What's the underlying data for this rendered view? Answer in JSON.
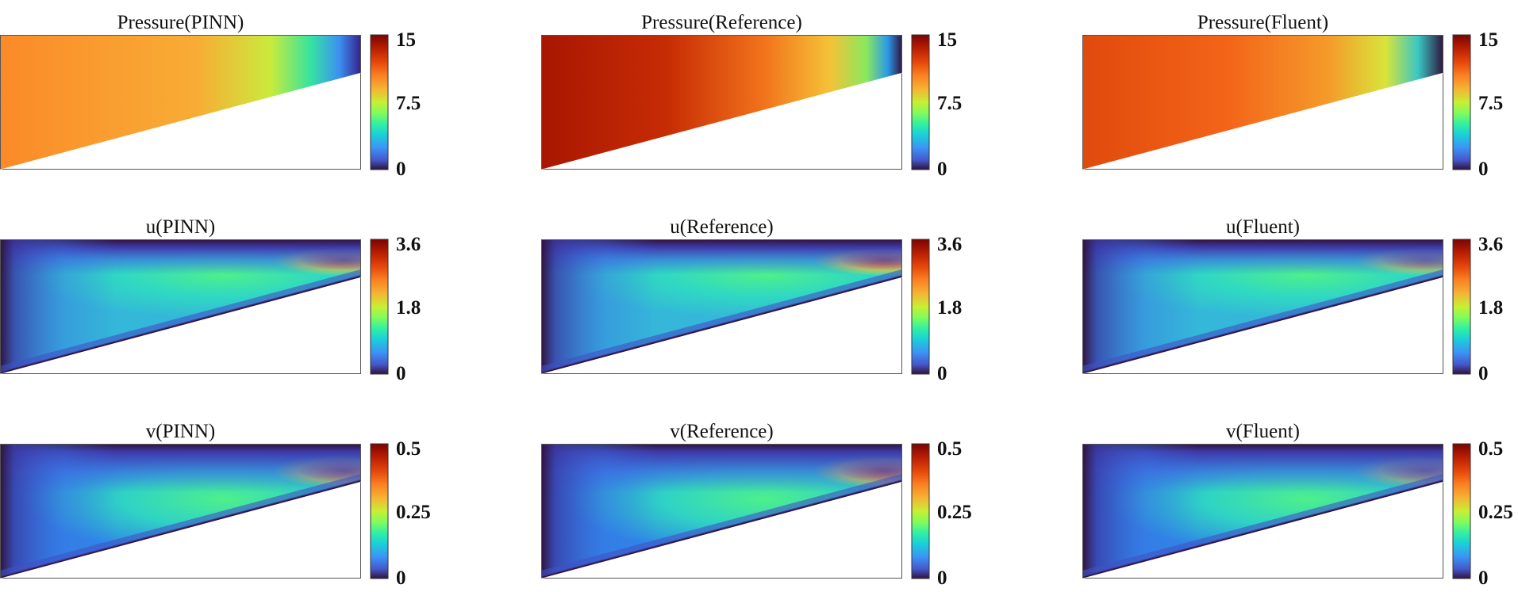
{
  "chart_data": [
    {
      "type": "heatmap",
      "title": "Pressure(PINN)",
      "field": "pressure",
      "source": "pinn",
      "clim": [
        0,
        15
      ],
      "colorbar_ticks": [
        "15",
        "7.5",
        "0"
      ],
      "colormap": "turbo"
    },
    {
      "type": "heatmap",
      "title": "Pressure(Reference)",
      "field": "pressure",
      "source": "reference",
      "clim": [
        0,
        15
      ],
      "colorbar_ticks": [
        "15",
        "7.5",
        "0"
      ],
      "colormap": "turbo"
    },
    {
      "type": "heatmap",
      "title": "Pressure(Fluent)",
      "field": "pressure",
      "source": "fluent",
      "clim": [
        0,
        15
      ],
      "colorbar_ticks": [
        "15",
        "7.5",
        "0"
      ],
      "colormap": "turbo"
    },
    {
      "type": "heatmap",
      "title": "u(PINN)",
      "field": "u",
      "source": "pinn",
      "clim": [
        0,
        3.6
      ],
      "colorbar_ticks": [
        "3.6",
        "1.8",
        "0"
      ],
      "colormap": "turbo"
    },
    {
      "type": "heatmap",
      "title": "u(Reference)",
      "field": "u",
      "source": "reference",
      "clim": [
        0,
        3.6
      ],
      "colorbar_ticks": [
        "3.6",
        "1.8",
        "0"
      ],
      "colormap": "turbo"
    },
    {
      "type": "heatmap",
      "title": "u(Fluent)",
      "field": "u",
      "source": "fluent",
      "clim": [
        0,
        3.6
      ],
      "colorbar_ticks": [
        "3.6",
        "1.8",
        "0"
      ],
      "colormap": "turbo"
    },
    {
      "type": "heatmap",
      "title": "v(PINN)",
      "field": "v",
      "source": "pinn",
      "clim": [
        0,
        0.5
      ],
      "colorbar_ticks": [
        "0.5",
        "0.25",
        "0"
      ],
      "colormap": "turbo"
    },
    {
      "type": "heatmap",
      "title": "v(Reference)",
      "field": "v",
      "source": "reference",
      "clim": [
        0,
        0.5
      ],
      "colorbar_ticks": [
        "0.5",
        "0.25",
        "0"
      ],
      "colormap": "turbo"
    },
    {
      "type": "heatmap",
      "title": "v(Fluent)",
      "field": "v",
      "source": "fluent",
      "clim": [
        0,
        0.5
      ],
      "colorbar_ticks": [
        "0.5",
        "0.25",
        "0"
      ],
      "colormap": "turbo"
    }
  ]
}
